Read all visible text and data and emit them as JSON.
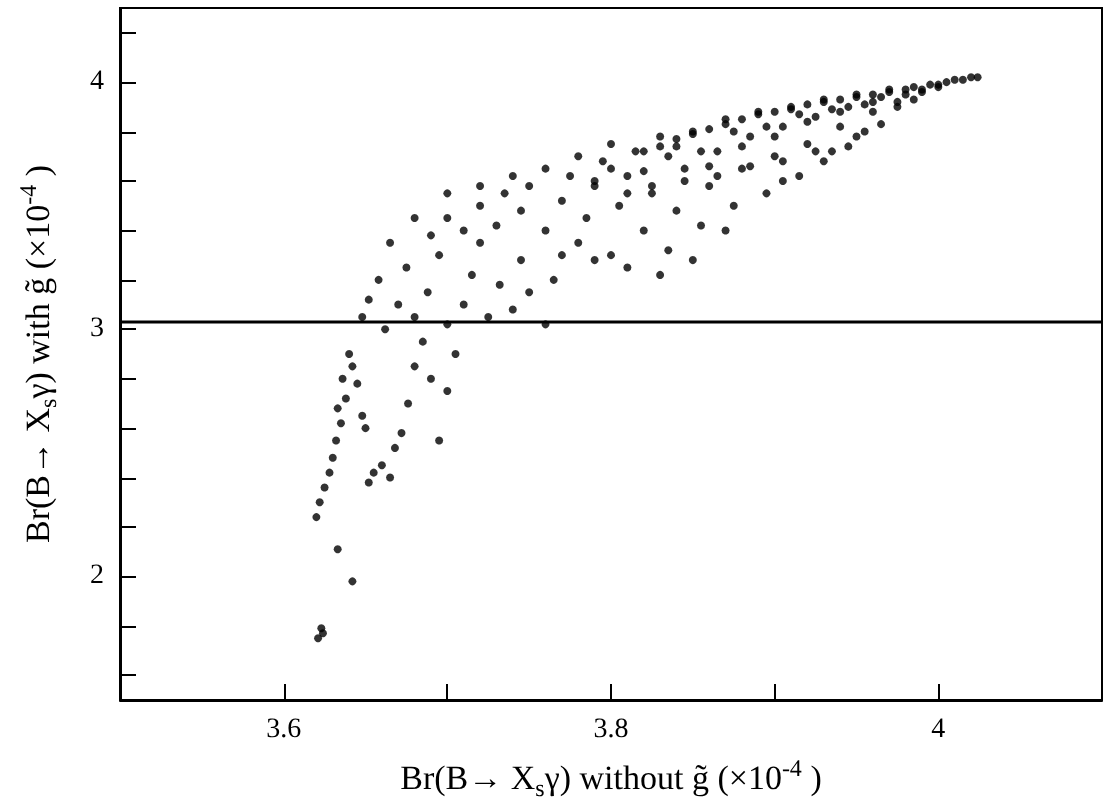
{
  "chart_data": {
    "type": "scatter",
    "xlabel": "Br(B→ X$_{s}$γ) without g̃ (×10$^{-4}$ )",
    "ylabel": "Br(B→ X$_{s}$γ) with g̃ (×10$^{-4}$ )",
    "xlim": [
      3.5,
      4.1
    ],
    "ylim": [
      1.5,
      4.3
    ],
    "xticks": [
      3.6,
      {
        "value": 3.7,
        "label": null
      },
      3.8,
      {
        "value": 3.9,
        "label": null
      },
      4
    ],
    "yticks": [
      {
        "value": 1.6,
        "label": null
      },
      {
        "value": 1.8,
        "label": null
      },
      2,
      {
        "value": 2.2,
        "label": null
      },
      {
        "value": 2.4,
        "label": null
      },
      {
        "value": 2.6,
        "label": null
      },
      {
        "value": 2.8,
        "label": null
      },
      3,
      {
        "value": 3.2,
        "label": null
      },
      {
        "value": 3.4,
        "label": null
      },
      {
        "value": 3.6,
        "label": null
      },
      {
        "value": 3.8,
        "label": null
      },
      4,
      {
        "value": 4.2,
        "label": null
      }
    ],
    "grid": false,
    "marker": "circle",
    "ref_lines": [
      {
        "axis": "y",
        "value": 3.03,
        "color": "#000000"
      }
    ],
    "series": [
      {
        "color": "#000000",
        "x": [
          3.623,
          3.621,
          3.624,
          3.642,
          3.633,
          3.62,
          3.622,
          3.625,
          3.628,
          3.63,
          3.632,
          3.635,
          3.633,
          3.638,
          3.636,
          3.642,
          3.64,
          3.645,
          3.648,
          3.65,
          3.655,
          3.652,
          3.66,
          3.665,
          3.668,
          3.672,
          3.676,
          3.68,
          3.685,
          3.69,
          3.695,
          3.7,
          3.705,
          3.648,
          3.652,
          3.658,
          3.662,
          3.67,
          3.675,
          3.68,
          3.688,
          3.695,
          3.7,
          3.71,
          3.715,
          3.72,
          3.725,
          3.732,
          3.74,
          3.745,
          3.75,
          3.76,
          3.765,
          3.69,
          3.7,
          3.71,
          3.72,
          3.73,
          3.735,
          3.745,
          3.75,
          3.76,
          3.77,
          3.775,
          3.78,
          3.785,
          3.79,
          3.795,
          3.8,
          3.805,
          3.81,
          3.815,
          3.82,
          3.825,
          3.83,
          3.835,
          3.84,
          3.845,
          3.85,
          3.855,
          3.86,
          3.865,
          3.87,
          3.875,
          3.88,
          3.885,
          3.89,
          3.895,
          3.9,
          3.905,
          3.91,
          3.915,
          3.92,
          3.925,
          3.93,
          3.935,
          3.94,
          3.945,
          3.95,
          3.955,
          3.96,
          3.965,
          3.97,
          3.975,
          3.98,
          3.985,
          3.99,
          3.995,
          4.0,
          4.005,
          4.01,
          4.015,
          4.02,
          4.024,
          3.76,
          3.74,
          3.72,
          3.7,
          3.68,
          3.665,
          3.78,
          3.8,
          3.82,
          3.84,
          3.86,
          3.88,
          3.9,
          3.92,
          3.94,
          3.96,
          3.87,
          3.85,
          3.83,
          3.81,
          3.79,
          3.77,
          3.905,
          3.93,
          3.95,
          3.975,
          3.82,
          3.83,
          3.84,
          3.85,
          3.86,
          3.87,
          3.88,
          3.89,
          3.9,
          3.91,
          3.92,
          3.93,
          3.94,
          3.95,
          3.96,
          3.97,
          3.98,
          3.99,
          4.0,
          3.825,
          3.845,
          3.865,
          3.885,
          3.905,
          3.925,
          3.945,
          3.965,
          3.985,
          3.79,
          3.8,
          3.81,
          3.835,
          3.855,
          3.875,
          3.895,
          3.915,
          3.935,
          3.955
        ],
        "values": [
          1.79,
          1.75,
          1.77,
          1.98,
          2.11,
          2.24,
          2.3,
          2.36,
          2.42,
          2.48,
          2.55,
          2.62,
          2.68,
          2.72,
          2.8,
          2.85,
          2.9,
          2.78,
          2.65,
          2.6,
          2.42,
          2.38,
          2.45,
          2.4,
          2.52,
          2.58,
          2.7,
          2.85,
          2.95,
          2.8,
          2.55,
          2.75,
          2.9,
          3.05,
          3.12,
          3.2,
          3.0,
          3.1,
          3.25,
          3.05,
          3.15,
          3.3,
          3.02,
          3.1,
          3.22,
          3.35,
          3.05,
          3.18,
          3.08,
          3.28,
          3.15,
          3.02,
          3.2,
          3.38,
          3.45,
          3.4,
          3.5,
          3.42,
          3.55,
          3.48,
          3.58,
          3.4,
          3.52,
          3.62,
          3.35,
          3.45,
          3.58,
          3.68,
          3.3,
          3.5,
          3.62,
          3.72,
          3.4,
          3.55,
          3.78,
          3.32,
          3.48,
          3.65,
          3.8,
          3.42,
          3.58,
          3.72,
          3.85,
          3.5,
          3.65,
          3.78,
          3.88,
          3.55,
          3.7,
          3.82,
          3.9,
          3.62,
          3.75,
          3.86,
          3.93,
          3.72,
          3.82,
          3.9,
          3.95,
          3.8,
          3.88,
          3.94,
          3.97,
          3.9,
          3.95,
          3.98,
          3.96,
          3.99,
          3.98,
          4.0,
          4.01,
          4.01,
          4.02,
          4.02,
          3.65,
          3.62,
          3.58,
          3.55,
          3.45,
          3.35,
          3.7,
          3.75,
          3.64,
          3.74,
          3.66,
          3.74,
          3.78,
          3.84,
          3.88,
          3.92,
          3.4,
          3.28,
          3.22,
          3.25,
          3.28,
          3.3,
          3.6,
          3.68,
          3.78,
          3.92,
          3.72,
          3.74,
          3.77,
          3.79,
          3.81,
          3.83,
          3.85,
          3.87,
          3.88,
          3.89,
          3.91,
          3.92,
          3.93,
          3.94,
          3.95,
          3.96,
          3.97,
          3.97,
          3.99,
          3.58,
          3.6,
          3.62,
          3.66,
          3.68,
          3.72,
          3.74,
          3.83,
          3.93,
          3.6,
          3.65,
          3.55,
          3.7,
          3.72,
          3.8,
          3.82,
          3.87,
          3.89,
          3.91
        ]
      }
    ]
  }
}
